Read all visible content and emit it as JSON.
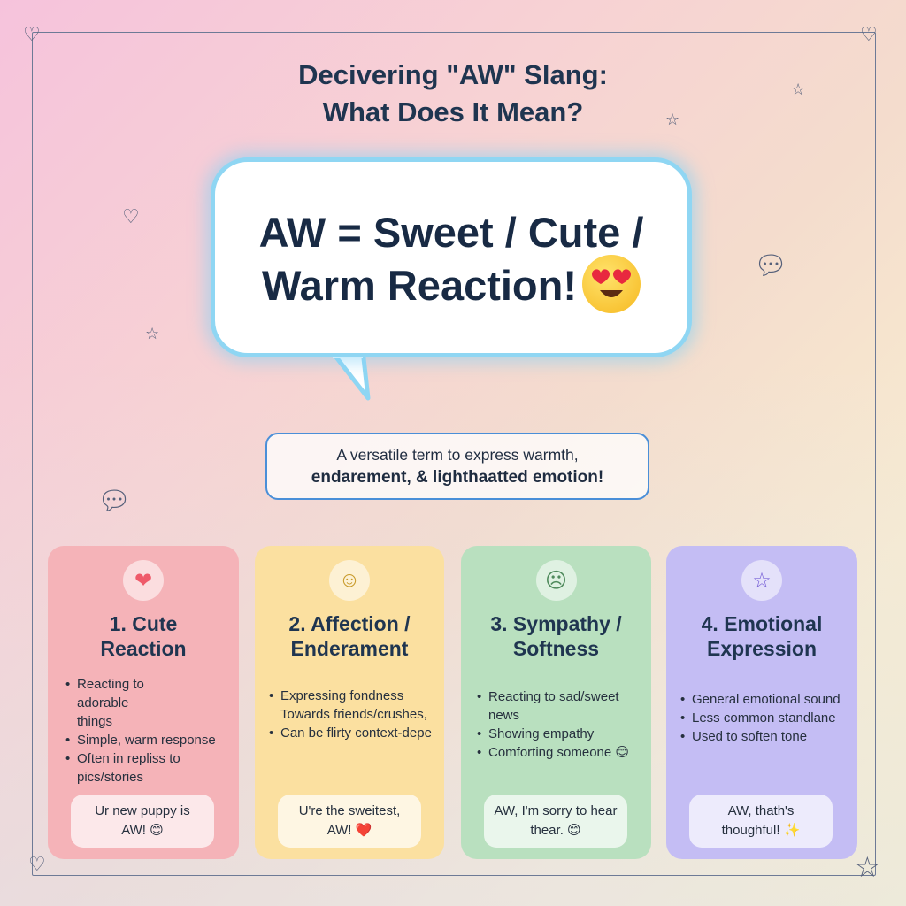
{
  "title": {
    "line1": "Decivering \"AW\" Slang:",
    "line2": "What Does It Mean?"
  },
  "bubble": {
    "line1": "AW = Sweet / Cute /",
    "line2": "Warm Reaction!",
    "emoji": "heart-eyes-emoji"
  },
  "subtitle": {
    "line1": "A versatile term to express warmth,",
    "line2": "endarement, & lighthaatted emotion!"
  },
  "colors": {
    "card1": "#f5b3b8",
    "card2": "#fbe0a0",
    "card3": "#b9e0bf",
    "card4": "#c4bdf4",
    "bubble_border": "#8fd6f3",
    "subtitle_border": "#4a8fd8"
  },
  "cards": [
    {
      "icon": "heart-icon",
      "heading1": "1. Cute",
      "heading2": "Reaction",
      "bullets": [
        "Reacting to adorable things",
        "Simple, warm response",
        "Often in repliss to pics/stories"
      ],
      "example1": "Ur new puppy is",
      "example2": "AW! 😊"
    },
    {
      "icon": "smile-icon",
      "heading1": "2. Affection /",
      "heading2": "Enderament",
      "bullets": [
        "Expressing fondness Towards friends/crushes,",
        "Can be flirty context-depe"
      ],
      "example1": "U're the sweitest,",
      "example2": "AW! ❤️"
    },
    {
      "icon": "sad-face-icon",
      "heading1": "3. Sympathy /",
      "heading2": "Softness",
      "bullets": [
        "Reacting to sad/sweet news",
        "Showing empathy",
        "Comforting someone 😊"
      ],
      "example1": "AW, I'm sorry to hear",
      "example2": "thear. 😊"
    },
    {
      "icon": "star-icon",
      "heading1": "4. Emotional",
      "heading2": "Expression",
      "bullets": [
        "General emotional sound",
        "Less common standlane",
        "Used to soften tone"
      ],
      "example1": "AW, thath's",
      "example2": "thoughful! ✨"
    }
  ]
}
